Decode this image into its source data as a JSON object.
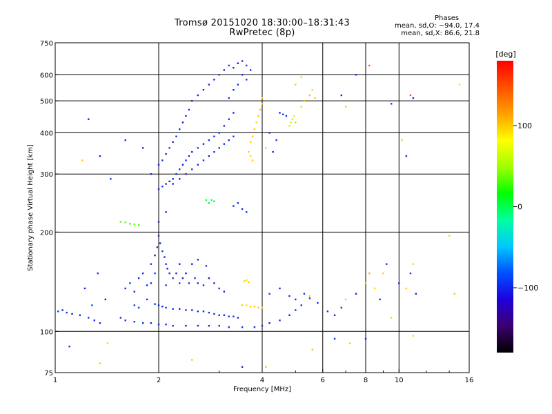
{
  "header": {
    "title": "Tromsø 20151020 18:30:00–18:31:43",
    "subtitle": "RwPretec (8p)",
    "phases_heading": "Phases",
    "stat_o": "mean, sd,O: −94.0, 17.4",
    "stat_x": "mean, sd,X:  86.6, 21.8"
  },
  "colorbar": {
    "unit_label": "[deg]",
    "range": [
      -180,
      180
    ],
    "ticks": [
      {
        "value": 100,
        "label": "100"
      },
      {
        "value": 0,
        "label": "0"
      },
      {
        "value": -100,
        "label": "−100"
      }
    ],
    "colors": [
      "#000000",
      "#3c006e",
      "#1e00dc",
      "#0050ff",
      "#00c8ff",
      "#00ffa0",
      "#00ff00",
      "#a0ff00",
      "#ffff00",
      "#ffa000",
      "#ff5000",
      "#ff0000"
    ]
  },
  "chart_data": {
    "type": "scatter",
    "title": "Tromsø 20151020 18:30:00–18:31:43",
    "subtitle": "RwPretec (8p)",
    "xlabel": "Frequency [MHz]",
    "ylabel": "Stationary phase Virtual Height [km]",
    "x_scale": "log",
    "y_scale": "log",
    "xlim": [
      1,
      16
    ],
    "ylim": [
      75,
      750
    ],
    "x_ticks": [
      1,
      2,
      4,
      6,
      8,
      10,
      16
    ],
    "x_tick_labels": [
      "1",
      "2",
      "4",
      "6",
      "8",
      "10",
      "16"
    ],
    "y_ticks": [
      75,
      100,
      200,
      300,
      400,
      500,
      600,
      750
    ],
    "y_tick_labels": [
      "75",
      "100",
      "200",
      "300",
      "400",
      "500",
      "600",
      "750"
    ],
    "grid": true,
    "x_grid": [
      2,
      4,
      6,
      8,
      10
    ],
    "y_grid": [
      100,
      200,
      300,
      400,
      500,
      600
    ],
    "color_variable": "phase [deg]",
    "points": [
      [
        1.02,
        115,
        -95
      ],
      [
        1.05,
        116,
        -100
      ],
      [
        1.08,
        114,
        -90
      ],
      [
        1.12,
        113,
        -105
      ],
      [
        1.18,
        112,
        -98
      ],
      [
        1.25,
        110,
        -92
      ],
      [
        1.3,
        108,
        -100
      ],
      [
        1.35,
        106,
        -95
      ],
      [
        1.28,
        120,
        -85
      ],
      [
        1.4,
        125,
        -110
      ],
      [
        1.22,
        135,
        -100
      ],
      [
        1.33,
        150,
        -95
      ],
      [
        1.6,
        135,
        -100
      ],
      [
        1.65,
        140,
        -95
      ],
      [
        1.7,
        132,
        -105
      ],
      [
        1.75,
        145,
        -100
      ],
      [
        1.8,
        150,
        -90
      ],
      [
        1.85,
        138,
        -100
      ],
      [
        1.9,
        160,
        -95
      ],
      [
        1.95,
        170,
        -110
      ],
      [
        1.98,
        180,
        -100
      ],
      [
        2.0,
        195,
        -95
      ],
      [
        2.02,
        185,
        -105
      ],
      [
        2.05,
        175,
        -90
      ],
      [
        2.08,
        168,
        -100
      ],
      [
        2.1,
        160,
        -95
      ],
      [
        2.12,
        155,
        -110
      ],
      [
        2.15,
        150,
        -100
      ],
      [
        2.2,
        145,
        -95
      ],
      [
        2.25,
        150,
        -100
      ],
      [
        2.3,
        140,
        -90
      ],
      [
        2.35,
        145,
        -100
      ],
      [
        2.4,
        150,
        -110
      ],
      [
        2.45,
        140,
        -95
      ],
      [
        2.5,
        160,
        -100
      ],
      [
        2.55,
        145,
        -90
      ],
      [
        2.6,
        140,
        -100
      ],
      [
        2.7,
        138,
        -95
      ],
      [
        2.8,
        145,
        -105
      ],
      [
        2.9,
        140,
        -100
      ],
      [
        3.0,
        135,
        -95
      ],
      [
        3.1,
        132,
        -100
      ],
      [
        1.9,
        140,
        -100
      ],
      [
        1.95,
        150,
        -90
      ],
      [
        2.1,
        138,
        -95
      ],
      [
        2.3,
        160,
        -105
      ],
      [
        2.6,
        165,
        -100
      ],
      [
        2.75,
        158,
        -95
      ],
      [
        1.7,
        120,
        -100
      ],
      [
        1.75,
        118,
        -95
      ],
      [
        1.85,
        125,
        -100
      ],
      [
        1.95,
        121,
        -100
      ],
      [
        2.0,
        120,
        -95
      ],
      [
        2.05,
        119,
        -100
      ],
      [
        2.1,
        118,
        -95
      ],
      [
        2.2,
        117,
        -100
      ],
      [
        2.3,
        117,
        -105
      ],
      [
        2.4,
        116,
        -95
      ],
      [
        2.5,
        116,
        -100
      ],
      [
        2.6,
        115,
        -95
      ],
      [
        2.7,
        115,
        -100
      ],
      [
        2.8,
        114,
        -95
      ],
      [
        2.9,
        113,
        -100
      ],
      [
        3.0,
        112,
        -95
      ],
      [
        3.1,
        112,
        -100
      ],
      [
        3.2,
        111,
        -90
      ],
      [
        3.3,
        111,
        -95
      ],
      [
        3.4,
        110,
        -100
      ],
      [
        1.55,
        110,
        -100
      ],
      [
        1.6,
        108,
        -95
      ],
      [
        1.7,
        107,
        -100
      ],
      [
        1.8,
        106,
        -95
      ],
      [
        1.9,
        106,
        -100
      ],
      [
        2.0,
        105,
        -95
      ],
      [
        2.1,
        105,
        -100
      ],
      [
        2.2,
        104,
        -95
      ],
      [
        2.4,
        104,
        -100
      ],
      [
        2.6,
        104,
        -95
      ],
      [
        2.8,
        104,
        -100
      ],
      [
        3.0,
        104,
        -95
      ],
      [
        3.2,
        103,
        -100
      ],
      [
        3.5,
        103,
        -95
      ],
      [
        3.8,
        103,
        -100
      ],
      [
        4.0,
        104,
        -95
      ],
      [
        4.2,
        106,
        -100
      ],
      [
        4.5,
        108,
        -95
      ],
      [
        4.8,
        112,
        -100
      ],
      [
        5.0,
        116,
        -95
      ],
      [
        5.2,
        120,
        -100
      ],
      [
        5.5,
        126,
        -95
      ],
      [
        3.5,
        120,
        100
      ],
      [
        3.6,
        120,
        95
      ],
      [
        3.7,
        119,
        100
      ],
      [
        3.8,
        119,
        105
      ],
      [
        3.9,
        118,
        100
      ],
      [
        4.0,
        118,
        95
      ],
      [
        3.55,
        142,
        100
      ],
      [
        3.6,
        143,
        95
      ],
      [
        3.65,
        141,
        100
      ],
      [
        4.2,
        130,
        -90
      ],
      [
        4.5,
        135,
        -100
      ],
      [
        4.8,
        128,
        -95
      ],
      [
        5.0,
        125,
        -100
      ],
      [
        5.3,
        130,
        -95
      ],
      [
        5.5,
        128,
        100
      ],
      [
        5.8,
        122,
        -100
      ],
      [
        6.2,
        115,
        -95
      ],
      [
        6.5,
        112,
        -100
      ],
      [
        6.8,
        118,
        -95
      ],
      [
        7.0,
        125,
        100
      ],
      [
        7.5,
        130,
        -100
      ],
      [
        8.0,
        140,
        100
      ],
      [
        8.2,
        150,
        110
      ],
      [
        8.5,
        135,
        95
      ],
      [
        8.8,
        125,
        -100
      ],
      [
        9.0,
        150,
        100
      ],
      [
        9.2,
        160,
        -95
      ],
      [
        10.0,
        140,
        -100
      ],
      [
        10.5,
        135,
        100
      ],
      [
        10.8,
        150,
        -90
      ],
      [
        11.0,
        160,
        95
      ],
      [
        11.2,
        130,
        -100
      ],
      [
        9.5,
        110,
        100
      ],
      [
        8.0,
        95,
        -100
      ],
      [
        7.2,
        92,
        100
      ],
      [
        6.5,
        95,
        -95
      ],
      [
        5.6,
        88,
        100
      ],
      [
        11.0,
        97,
        95
      ],
      [
        14.5,
        130,
        100
      ],
      [
        14.0,
        195,
        95
      ],
      [
        1.55,
        215,
        30
      ],
      [
        1.6,
        214,
        35
      ],
      [
        1.65,
        212,
        30
      ],
      [
        1.7,
        211,
        35
      ],
      [
        1.75,
        210,
        30
      ],
      [
        2.0,
        270,
        -100
      ],
      [
        2.05,
        275,
        -95
      ],
      [
        2.1,
        280,
        -100
      ],
      [
        2.15,
        285,
        -110
      ],
      [
        2.2,
        290,
        -100
      ],
      [
        2.25,
        300,
        -95
      ],
      [
        2.3,
        310,
        -100
      ],
      [
        2.35,
        320,
        -105
      ],
      [
        2.4,
        330,
        -100
      ],
      [
        2.45,
        340,
        -95
      ],
      [
        2.5,
        350,
        -100
      ],
      [
        2.6,
        360,
        -90
      ],
      [
        2.7,
        370,
        -100
      ],
      [
        2.8,
        380,
        -95
      ],
      [
        2.9,
        390,
        -100
      ],
      [
        3.0,
        400,
        -95
      ],
      [
        3.1,
        420,
        -100
      ],
      [
        3.2,
        440,
        -95
      ],
      [
        3.3,
        460,
        -100
      ],
      [
        2.0,
        320,
        -100
      ],
      [
        2.05,
        330,
        -95
      ],
      [
        2.1,
        345,
        -100
      ],
      [
        2.15,
        360,
        -90
      ],
      [
        2.2,
        375,
        -100
      ],
      [
        2.25,
        390,
        -95
      ],
      [
        2.3,
        410,
        -100
      ],
      [
        2.35,
        430,
        -105
      ],
      [
        2.4,
        450,
        -100
      ],
      [
        2.45,
        470,
        -95
      ],
      [
        2.5,
        500,
        -100
      ],
      [
        2.6,
        520,
        -95
      ],
      [
        2.7,
        540,
        -100
      ],
      [
        2.8,
        560,
        -95
      ],
      [
        2.9,
        580,
        -100
      ],
      [
        3.0,
        600,
        -90
      ],
      [
        3.1,
        620,
        -100
      ],
      [
        3.2,
        640,
        -95
      ],
      [
        3.3,
        630,
        -100
      ],
      [
        3.4,
        650,
        -105
      ],
      [
        3.5,
        660,
        -100
      ],
      [
        3.6,
        640,
        -95
      ],
      [
        3.7,
        620,
        -100
      ],
      [
        3.5,
        600,
        -95
      ],
      [
        3.6,
        580,
        -100
      ],
      [
        3.4,
        560,
        -95
      ],
      [
        3.3,
        540,
        -100
      ],
      [
        3.2,
        510,
        -95
      ],
      [
        2.2,
        280,
        -100
      ],
      [
        2.3,
        290,
        -95
      ],
      [
        2.4,
        300,
        -100
      ],
      [
        2.5,
        310,
        -95
      ],
      [
        2.6,
        320,
        -100
      ],
      [
        2.7,
        330,
        -95
      ],
      [
        2.8,
        340,
        -100
      ],
      [
        2.9,
        350,
        -95
      ],
      [
        3.0,
        360,
        -100
      ],
      [
        3.1,
        370,
        -95
      ],
      [
        3.2,
        380,
        -100
      ],
      [
        3.3,
        390,
        -95
      ],
      [
        2.75,
        250,
        0
      ],
      [
        2.8,
        245,
        5
      ],
      [
        2.85,
        250,
        -10
      ],
      [
        2.9,
        248,
        0
      ],
      [
        3.3,
        240,
        -100
      ],
      [
        3.4,
        245,
        -95
      ],
      [
        3.5,
        235,
        -100
      ],
      [
        3.6,
        230,
        -95
      ],
      [
        3.7,
        375,
        100
      ],
      [
        3.75,
        390,
        105
      ],
      [
        3.8,
        410,
        100
      ],
      [
        3.85,
        430,
        95
      ],
      [
        3.9,
        450,
        100
      ],
      [
        3.95,
        470,
        105
      ],
      [
        4.0,
        490,
        100
      ],
      [
        4.0,
        510,
        95
      ],
      [
        3.65,
        350,
        100
      ],
      [
        3.7,
        340,
        95
      ],
      [
        3.75,
        330,
        100
      ],
      [
        4.8,
        420,
        60
      ],
      [
        4.85,
        430,
        65
      ],
      [
        4.9,
        440,
        60
      ],
      [
        4.95,
        450,
        65
      ],
      [
        5.0,
        430,
        100
      ],
      [
        4.5,
        460,
        -100
      ],
      [
        4.6,
        455,
        -95
      ],
      [
        4.7,
        450,
        -100
      ],
      [
        5.2,
        480,
        100
      ],
      [
        5.3,
        500,
        105
      ],
      [
        5.5,
        520,
        100
      ],
      [
        5.6,
        540,
        95
      ],
      [
        5.7,
        510,
        100
      ],
      [
        4.2,
        400,
        -100
      ],
      [
        4.4,
        380,
        -95
      ],
      [
        4.1,
        360,
        100
      ],
      [
        4.3,
        350,
        -100
      ],
      [
        5.0,
        560,
        100
      ],
      [
        5.2,
        590,
        95
      ],
      [
        6.8,
        520,
        -100
      ],
      [
        7.0,
        480,
        100
      ],
      [
        7.5,
        600,
        -95
      ],
      [
        8.2,
        640,
        140
      ],
      [
        10.8,
        520,
        150
      ],
      [
        11.0,
        510,
        -100
      ],
      [
        9.5,
        490,
        -95
      ],
      [
        10.2,
        380,
        100
      ],
      [
        10.5,
        340,
        -100
      ],
      [
        15.0,
        560,
        60
      ],
      [
        1.35,
        340,
        -100
      ],
      [
        1.45,
        290,
        -95
      ],
      [
        1.2,
        330,
        100
      ],
      [
        1.25,
        440,
        -100
      ],
      [
        1.6,
        380,
        -100
      ],
      [
        1.8,
        360,
        -95
      ],
      [
        1.9,
        300,
        -100
      ],
      [
        2.1,
        230,
        -95
      ],
      [
        2.0,
        215,
        -100
      ],
      [
        1.35,
        80,
        100
      ],
      [
        1.1,
        90,
        -100
      ],
      [
        1.42,
        92,
        100
      ],
      [
        2.5,
        82,
        100
      ],
      [
        3.5,
        78,
        -100
      ],
      [
        4.1,
        78,
        100
      ]
    ]
  }
}
